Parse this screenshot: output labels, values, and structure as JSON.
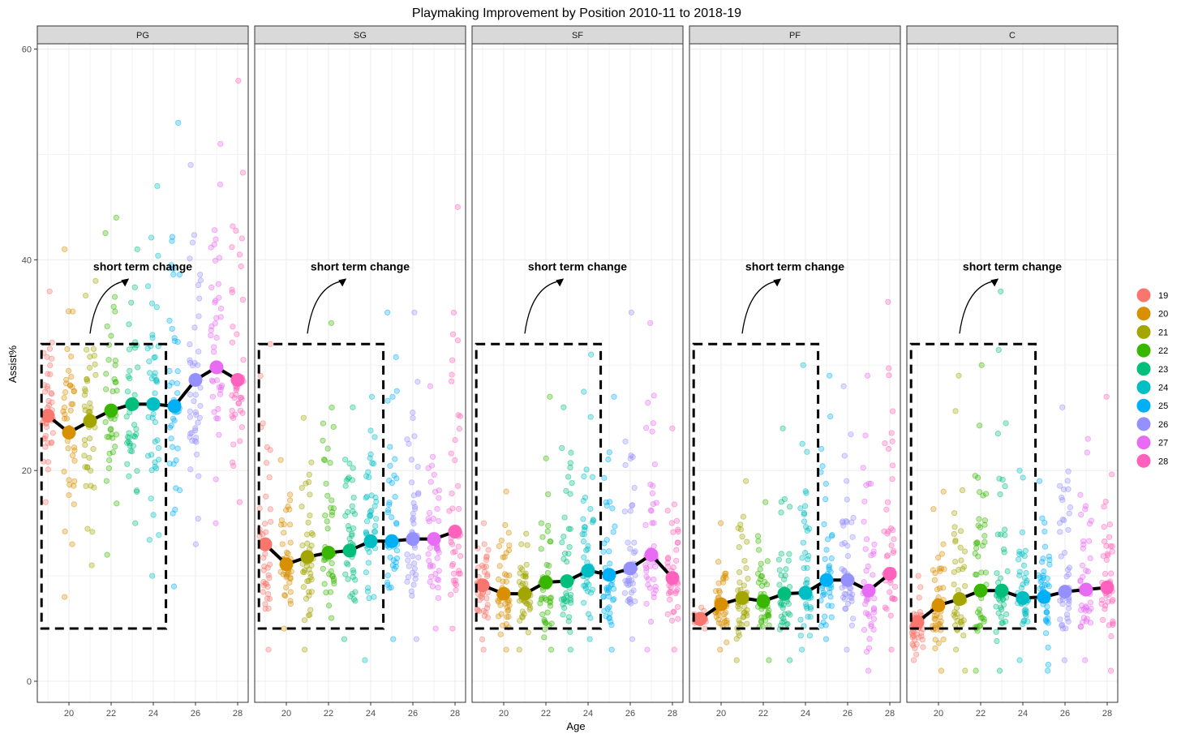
{
  "chart_data": {
    "type": "scatter",
    "title": "Playmaking Improvement by Position 2010-11 to 2018-19",
    "xlabel": "Age",
    "ylabel": "Assist%",
    "xlim": [
      18.5,
      28.5
    ],
    "ylim": [
      -2,
      60.5
    ],
    "x_ticks": [
      20,
      22,
      24,
      26,
      28
    ],
    "y_ticks": [
      0,
      20,
      40,
      60
    ],
    "grid": true,
    "facets": [
      "PG",
      "SG",
      "SF",
      "PF",
      "C"
    ],
    "legend": {
      "position": "right",
      "entries": [
        {
          "label": "19",
          "color": "#F8766D"
        },
        {
          "label": "20",
          "color": "#D89000"
        },
        {
          "label": "21",
          "color": "#A3A500"
        },
        {
          "label": "22",
          "color": "#39B600"
        },
        {
          "label": "23",
          "color": "#00BF7D"
        },
        {
          "label": "24",
          "color": "#00BFC4"
        },
        {
          "label": "25",
          "color": "#00B0F6"
        },
        {
          "label": "26",
          "color": "#9590FF"
        },
        {
          "label": "27",
          "color": "#E76BF3"
        },
        {
          "label": "28",
          "color": "#FF62BC"
        }
      ]
    },
    "series": [
      {
        "facet": "PG",
        "ages": [
          19,
          20,
          21,
          22,
          23,
          24,
          25,
          26,
          27,
          28
        ],
        "means": [
          25.2,
          23.6,
          24.7,
          25.7,
          26.3,
          26.3,
          26.1,
          28.6,
          29.8,
          28.6
        ],
        "spread": [
          [
            17,
            37
          ],
          [
            8,
            41
          ],
          [
            11,
            38
          ],
          [
            12,
            44
          ],
          [
            15,
            41
          ],
          [
            10,
            47
          ],
          [
            9,
            53
          ],
          [
            13,
            49
          ],
          [
            15,
            51
          ],
          [
            17,
            57
          ]
        ]
      },
      {
        "facet": "SG",
        "ages": [
          19,
          20,
          21,
          22,
          23,
          24,
          25,
          26,
          27,
          28
        ],
        "means": [
          13.0,
          11.1,
          11.8,
          12.2,
          12.4,
          13.3,
          13.3,
          13.5,
          13.5,
          14.2
        ],
        "spread": [
          [
            3,
            32
          ],
          [
            5,
            21
          ],
          [
            3,
            25
          ],
          [
            6,
            34
          ],
          [
            4,
            26
          ],
          [
            2,
            27
          ],
          [
            4,
            35
          ],
          [
            4,
            35
          ],
          [
            5,
            28
          ],
          [
            5,
            45
          ]
        ]
      },
      {
        "facet": "SF",
        "ages": [
          19,
          20,
          21,
          22,
          23,
          24,
          25,
          26,
          27,
          28
        ],
        "means": [
          9.1,
          8.3,
          8.3,
          9.4,
          9.5,
          10.5,
          10.1,
          10.7,
          12.0,
          9.8
        ],
        "spread": [
          [
            3,
            15
          ],
          [
            3,
            18
          ],
          [
            3,
            14
          ],
          [
            3,
            27
          ],
          [
            3,
            26
          ],
          [
            4,
            31
          ],
          [
            3,
            27
          ],
          [
            4,
            35
          ],
          [
            3,
            34
          ],
          [
            3,
            24
          ]
        ]
      },
      {
        "facet": "PF",
        "ages": [
          19,
          20,
          21,
          22,
          23,
          24,
          25,
          26,
          27,
          28
        ],
        "means": [
          5.9,
          7.3,
          7.9,
          7.6,
          8.3,
          8.4,
          9.6,
          9.6,
          8.6,
          10.2
        ],
        "spread": [
          [
            5,
            7
          ],
          [
            3,
            15
          ],
          [
            2,
            19
          ],
          [
            2,
            17
          ],
          [
            2,
            24
          ],
          [
            3,
            30
          ],
          [
            4,
            29
          ],
          [
            3,
            28
          ],
          [
            1,
            29
          ],
          [
            3,
            36
          ]
        ]
      },
      {
        "facet": "C",
        "ages": [
          19,
          20,
          21,
          22,
          23,
          24,
          25,
          26,
          27,
          28
        ],
        "means": [
          5.6,
          7.2,
          7.8,
          8.6,
          8.6,
          7.9,
          8.0,
          8.5,
          8.7,
          8.9
        ],
        "spread": [
          [
            2,
            10
          ],
          [
            1,
            18
          ],
          [
            1,
            29
          ],
          [
            1,
            30
          ],
          [
            1,
            37
          ],
          [
            2,
            20
          ],
          [
            1,
            19
          ],
          [
            2,
            26
          ],
          [
            2,
            23
          ],
          [
            1,
            27
          ]
        ]
      }
    ],
    "annotations": [
      {
        "text": "short term change",
        "box": {
          "x": [
            18.7,
            24.6
          ],
          "y": [
            5,
            32
          ]
        }
      }
    ]
  }
}
